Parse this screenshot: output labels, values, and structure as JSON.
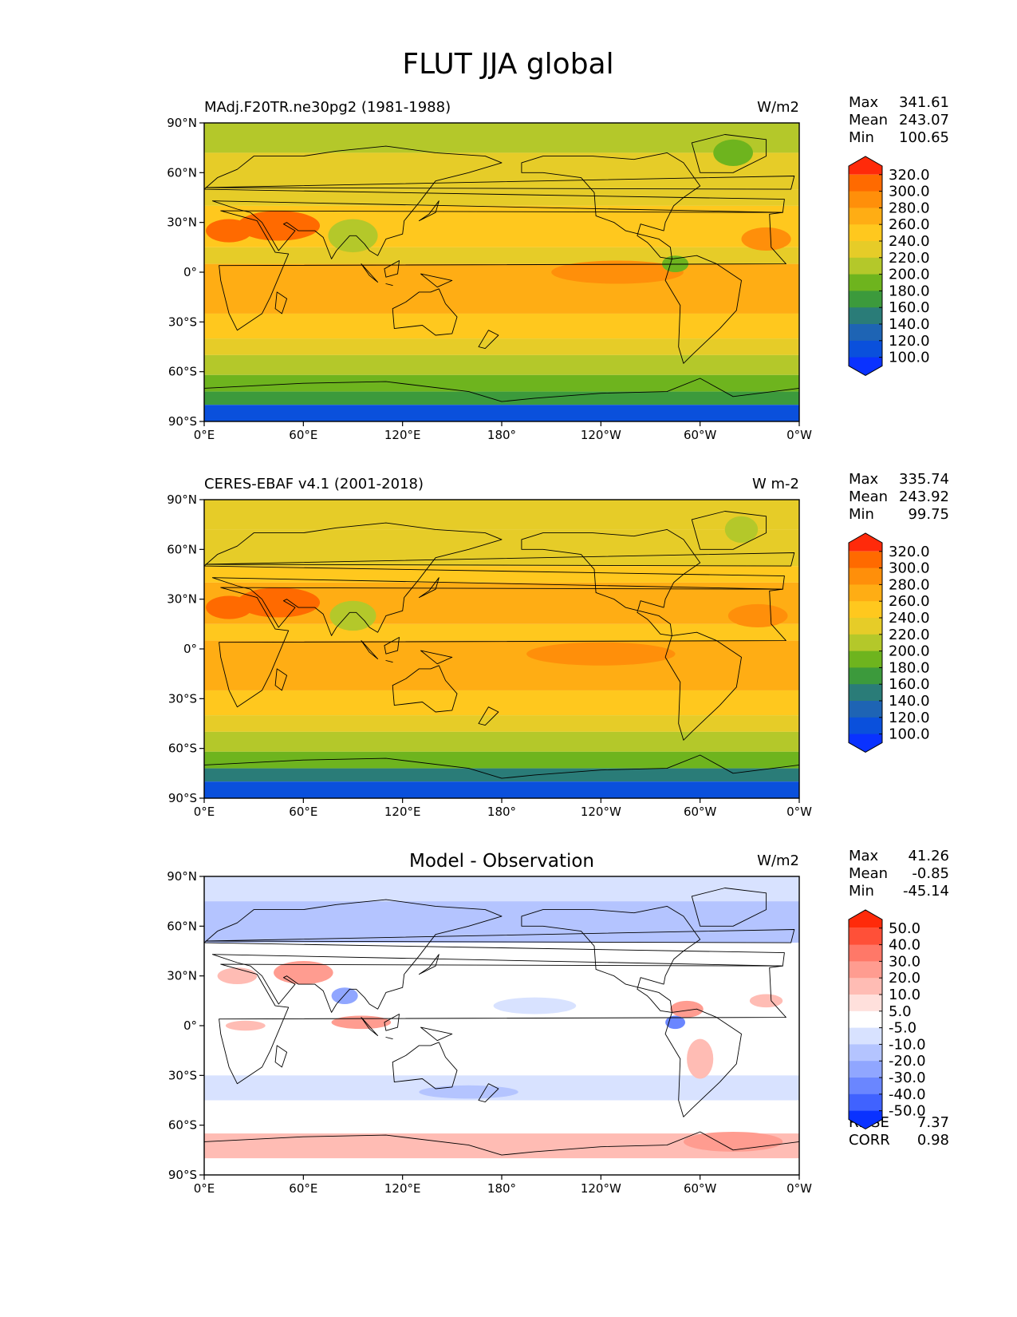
{
  "figure": {
    "title": "FLUT JJA global"
  },
  "chart_data": [
    {
      "type": "heatmap",
      "id": "model",
      "title": "",
      "left_label": "MAdj.F20TR.ne30pg2 (1981-1988)",
      "units": "W/m2",
      "stats": [
        {
          "label": "Max",
          "value": "341.61"
        },
        {
          "label": "Mean",
          "value": "243.07"
        },
        {
          "label": "Min",
          "value": "100.65"
        }
      ],
      "extra_stats": [],
      "colorbar": {
        "levels": [
          "320.0",
          "300.0",
          "280.0",
          "260.0",
          "240.0",
          "220.0",
          "200.0",
          "180.0",
          "160.0",
          "140.0",
          "120.0",
          "100.0"
        ],
        "colors_top_to_bottom": [
          "#ff2a0a",
          "#ff6a00",
          "#ff8f0a",
          "#ffad14",
          "#ffc81e",
          "#e6cc28",
          "#b4c82a",
          "#6eb41e",
          "#3c9a3c",
          "#2a7c78",
          "#1e64b4",
          "#0a50dc",
          "#0a32ff"
        ]
      },
      "x_ticks": [
        "0°E",
        "60°E",
        "120°E",
        "180°",
        "120°W",
        "60°W",
        "0°W"
      ],
      "y_ticks": [
        "90°N",
        "60°N",
        "30°N",
        "0°",
        "30°S",
        "60°S",
        "90°S"
      ],
      "lat_bands": [
        {
          "lat_from": 90,
          "lat_to": 72,
          "value": 205
        },
        {
          "lat_from": 72,
          "lat_to": 50,
          "value": 225
        },
        {
          "lat_from": 50,
          "lat_to": 40,
          "value": 235
        },
        {
          "lat_from": 40,
          "lat_to": 15,
          "value": 255
        },
        {
          "lat_from": 15,
          "lat_to": 5,
          "value": 232
        },
        {
          "lat_from": 5,
          "lat_to": -25,
          "value": 272
        },
        {
          "lat_from": -25,
          "lat_to": -40,
          "value": 245
        },
        {
          "lat_from": -40,
          "lat_to": -50,
          "value": 225
        },
        {
          "lat_from": -50,
          "lat_to": -62,
          "value": 205
        },
        {
          "lat_from": -62,
          "lat_to": -72,
          "value": 185
        },
        {
          "lat_from": -72,
          "lat_to": -80,
          "value": 165
        },
        {
          "lat_from": -80,
          "lat_to": -90,
          "value": 112
        }
      ],
      "blobs": [
        {
          "lon": 45,
          "lat": 28,
          "rlon": 25,
          "rlat": 9,
          "value": 318
        },
        {
          "lon": 15,
          "lat": 25,
          "rlon": 14,
          "rlat": 7,
          "value": 302
        },
        {
          "lon": 90,
          "lat": 22,
          "rlon": 15,
          "rlat": 10,
          "value": 205
        },
        {
          "lon": 250,
          "lat": 0,
          "rlon": 40,
          "rlat": 7,
          "value": 285
        },
        {
          "lon": 340,
          "lat": 20,
          "rlon": 15,
          "rlat": 7,
          "value": 290
        },
        {
          "lon": 285,
          "lat": 5,
          "rlon": 8,
          "rlat": 5,
          "value": 190
        },
        {
          "lon": 320,
          "lat": 72,
          "rlon": 12,
          "rlat": 8,
          "value": 190
        }
      ]
    },
    {
      "type": "heatmap",
      "id": "observation",
      "title": "",
      "left_label": "CERES-EBAF v4.1 (2001-2018)",
      "units": "W m-2",
      "stats": [
        {
          "label": "Max",
          "value": "335.74"
        },
        {
          "label": "Mean",
          "value": "243.92"
        },
        {
          "label": "Min",
          "value": "99.75"
        }
      ],
      "extra_stats": [],
      "colorbar": {
        "levels": [
          "320.0",
          "300.0",
          "280.0",
          "260.0",
          "240.0",
          "220.0",
          "200.0",
          "180.0",
          "160.0",
          "140.0",
          "120.0",
          "100.0"
        ],
        "colors_top_to_bottom": [
          "#ff2a0a",
          "#ff6a00",
          "#ff8f0a",
          "#ffad14",
          "#ffc81e",
          "#e6cc28",
          "#b4c82a",
          "#6eb41e",
          "#3c9a3c",
          "#2a7c78",
          "#1e64b4",
          "#0a50dc",
          "#0a32ff"
        ]
      },
      "x_ticks": [
        "0°E",
        "60°E",
        "120°E",
        "180°",
        "120°W",
        "60°W",
        "0°W"
      ],
      "y_ticks": [
        "90°N",
        "60°N",
        "30°N",
        "0°",
        "30°S",
        "60°S",
        "90°S"
      ],
      "lat_bands": [
        {
          "lat_from": 90,
          "lat_to": 72,
          "value": 225
        },
        {
          "lat_from": 72,
          "lat_to": 50,
          "value": 232
        },
        {
          "lat_from": 50,
          "lat_to": 40,
          "value": 245
        },
        {
          "lat_from": 40,
          "lat_to": 15,
          "value": 262
        },
        {
          "lat_from": 15,
          "lat_to": 5,
          "value": 240
        },
        {
          "lat_from": 5,
          "lat_to": -25,
          "value": 275
        },
        {
          "lat_from": -25,
          "lat_to": -40,
          "value": 250
        },
        {
          "lat_from": -40,
          "lat_to": -50,
          "value": 228
        },
        {
          "lat_from": -50,
          "lat_to": -62,
          "value": 210
        },
        {
          "lat_from": -62,
          "lat_to": -72,
          "value": 192
        },
        {
          "lat_from": -72,
          "lat_to": -80,
          "value": 158
        },
        {
          "lat_from": -80,
          "lat_to": -90,
          "value": 110
        }
      ],
      "blobs": [
        {
          "lon": 45,
          "lat": 28,
          "rlon": 25,
          "rlat": 9,
          "value": 312
        },
        {
          "lon": 15,
          "lat": 25,
          "rlon": 14,
          "rlat": 7,
          "value": 300
        },
        {
          "lon": 90,
          "lat": 20,
          "rlon": 14,
          "rlat": 9,
          "value": 212
        },
        {
          "lon": 240,
          "lat": -3,
          "rlon": 45,
          "rlat": 7,
          "value": 290
        },
        {
          "lon": 335,
          "lat": 20,
          "rlon": 18,
          "rlat": 7,
          "value": 292
        },
        {
          "lon": 325,
          "lat": 72,
          "rlon": 10,
          "rlat": 8,
          "value": 205
        }
      ]
    },
    {
      "type": "heatmap",
      "id": "difference",
      "title": "Model - Observation",
      "left_label": "",
      "units": "W/m2",
      "stats": [
        {
          "label": "Max",
          "value": "41.26"
        },
        {
          "label": "Mean",
          "value": "-0.85"
        },
        {
          "label": "Min",
          "value": "-45.14"
        }
      ],
      "extra_stats": [
        {
          "label": "RMSE",
          "value": "7.37"
        },
        {
          "label": "CORR",
          "value": "0.98"
        }
      ],
      "colorbar": {
        "levels": [
          "50.0",
          "40.0",
          "30.0",
          "20.0",
          "10.0",
          "5.0",
          "-5.0",
          "-10.0",
          "-20.0",
          "-30.0",
          "-40.0",
          "-50.0"
        ],
        "colors_top_to_bottom": [
          "#ff2a0a",
          "#ff5038",
          "#ff7868",
          "#ff9c90",
          "#ffbcb4",
          "#ffe0dc",
          "#ffffff",
          "#d8e2ff",
          "#b4c4ff",
          "#90a6ff",
          "#6a86ff",
          "#4062ff",
          "#0a32ff"
        ]
      },
      "x_ticks": [
        "0°E",
        "60°E",
        "120°E",
        "180°",
        "120°W",
        "60°W",
        "0°W"
      ],
      "y_ticks": [
        "90°N",
        "60°N",
        "30°N",
        "0°",
        "30°S",
        "60°S",
        "90°S"
      ],
      "lat_bands": [
        {
          "lat_from": 90,
          "lat_to": 75,
          "value": -8
        },
        {
          "lat_from": 75,
          "lat_to": 50,
          "value": -12
        },
        {
          "lat_from": 50,
          "lat_to": 35,
          "value": -2
        },
        {
          "lat_from": 35,
          "lat_to": -30,
          "value": 0
        },
        {
          "lat_from": -30,
          "lat_to": -45,
          "value": -8
        },
        {
          "lat_from": -45,
          "lat_to": -65,
          "value": 0
        },
        {
          "lat_from": -65,
          "lat_to": -80,
          "value": 12
        },
        {
          "lat_from": -80,
          "lat_to": -90,
          "value": 0
        }
      ],
      "blobs": [
        {
          "lon": 60,
          "lat": 32,
          "rlon": 18,
          "rlat": 7,
          "value": 22
        },
        {
          "lon": 20,
          "lat": 30,
          "rlon": 12,
          "rlat": 5,
          "value": 12
        },
        {
          "lon": 95,
          "lat": 2,
          "rlon": 18,
          "rlat": 4,
          "value": 22
        },
        {
          "lon": 25,
          "lat": 0,
          "rlon": 12,
          "rlat": 3,
          "value": 15
        },
        {
          "lon": 85,
          "lat": 18,
          "rlon": 8,
          "rlat": 5,
          "value": -22
        },
        {
          "lon": 160,
          "lat": -40,
          "rlon": 30,
          "rlat": 4,
          "value": -18
        },
        {
          "lon": 200,
          "lat": 12,
          "rlon": 25,
          "rlat": 5,
          "value": -8
        },
        {
          "lon": 285,
          "lat": 2,
          "rlon": 6,
          "rlat": 4,
          "value": -35
        },
        {
          "lon": 292,
          "lat": 10,
          "rlon": 10,
          "rlat": 5,
          "value": 25
        },
        {
          "lon": 300,
          "lat": -20,
          "rlon": 8,
          "rlat": 12,
          "value": 12
        },
        {
          "lon": 320,
          "lat": -70,
          "rlon": 30,
          "rlat": 6,
          "value": 20
        },
        {
          "lon": 340,
          "lat": 15,
          "rlon": 10,
          "rlat": 4,
          "value": 15
        }
      ]
    }
  ]
}
